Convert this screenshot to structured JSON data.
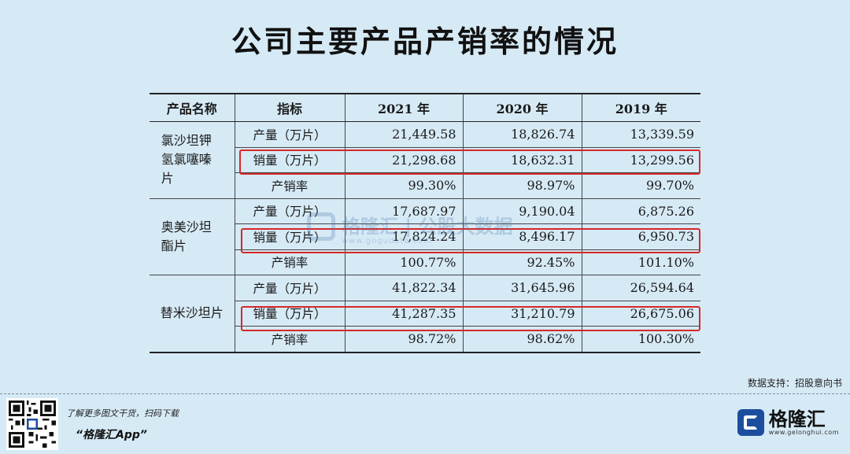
{
  "title": "公司主要产品产销率的情况",
  "table": {
    "headers": [
      "产品名称",
      "指标",
      "2021 年",
      "2020 年",
      "2019 年"
    ],
    "groups": [
      {
        "product": "氯沙坦钾氢氯噻嗪片",
        "rows": [
          {
            "indicator": "产量（万片）",
            "values": [
              "21,449.58",
              "18,826.74",
              "13,339.59"
            ]
          },
          {
            "indicator": "销量（万片）",
            "values": [
              "21,298.68",
              "18,632.31",
              "13,299.56"
            ],
            "highlighted": true
          },
          {
            "indicator": "产销率",
            "values": [
              "99.30%",
              "98.97%",
              "99.70%"
            ]
          }
        ]
      },
      {
        "product": "奥美沙坦酯片",
        "rows": [
          {
            "indicator": "产量（万片）",
            "values": [
              "17,687.97",
              "9,190.04",
              "6,875.26"
            ]
          },
          {
            "indicator": "销量（万片）",
            "values": [
              "17,824.24",
              "8,496.17",
              "6,950.73"
            ],
            "highlighted": true
          },
          {
            "indicator": "产销率",
            "values": [
              "100.77%",
              "92.45%",
              "101.10%"
            ]
          }
        ]
      },
      {
        "product": "替米沙坦片",
        "rows": [
          {
            "indicator": "产量（万片）",
            "values": [
              "41,822.34",
              "31,645.96",
              "26,594.64"
            ]
          },
          {
            "indicator": "销量（万片）",
            "values": [
              "41,287.35",
              "31,210.79",
              "26,675.06"
            ],
            "highlighted": true
          },
          {
            "indicator": "产销率",
            "values": [
              "98.72%",
              "98.62%",
              "100.30%"
            ]
          }
        ]
      }
    ],
    "highlight_color": "#d62828"
  },
  "watermark": {
    "text": "格隆汇 | 公股大数据",
    "sub": "www.gogudata.com"
  },
  "source": "数据支持：招股意向书",
  "footer": {
    "promo_line": "了解更多图文干货，扫码下载",
    "app_name": "“格隆汇App”",
    "brand_name": "格隆汇",
    "brand_sub": "www.gelonghui.com",
    "brand_color": "#1d4e9e"
  }
}
